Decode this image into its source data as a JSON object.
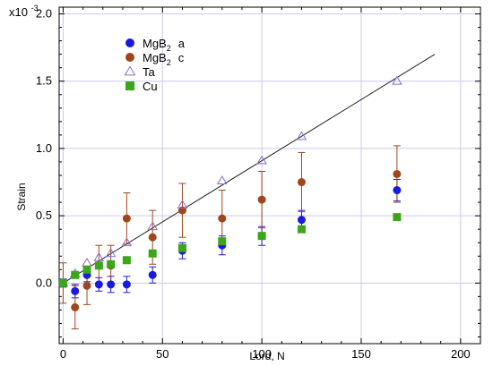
{
  "chart_data": {
    "type": "scatter",
    "ylabel": "Strain",
    "xlabel": "Lord, N",
    "y_exponent_label": "x10",
    "y_exponent_power": "-3",
    "xlim": [
      -2,
      210
    ],
    "ylim": [
      -0.00045,
      0.00205
    ],
    "x_ticks": [
      0,
      50,
      100,
      150,
      200
    ],
    "x_tick_labels": [
      "0",
      "50",
      "100",
      "150",
      "200"
    ],
    "y_ticks": [
      0,
      0.0005,
      0.001,
      0.0015,
      0.002
    ],
    "y_tick_labels": [
      "0.0",
      "0.5",
      "1.0",
      "1.5",
      "2.0"
    ],
    "grid": true,
    "legend_position": "top-left",
    "series": [
      {
        "name_main": "MgB",
        "name_sub": "2",
        "name_tail": "a",
        "marker": "circle",
        "color": "#1a1adf",
        "x": [
          0,
          6,
          12,
          18,
          24,
          32,
          45,
          60,
          80,
          100,
          120,
          168
        ],
        "y": [
          0,
          -6e-05,
          6e-05,
          -1e-05,
          -1e-05,
          -1e-05,
          6e-05,
          0.00024,
          0.00028,
          0.00035,
          0.00047,
          0.00069
        ],
        "err": [
          3e-05,
          5e-05,
          5e-05,
          5e-05,
          6e-05,
          6e-05,
          6e-05,
          6e-05,
          7e-05,
          7e-05,
          7e-05,
          8e-05
        ]
      },
      {
        "name_main": "MgB",
        "name_sub": "2",
        "name_tail": "c",
        "marker": "circle",
        "color": "#a0461a",
        "x": [
          0,
          6,
          12,
          18,
          24,
          32,
          45,
          60,
          80,
          100,
          120,
          168
        ],
        "y": [
          0,
          -0.00018,
          -2e-05,
          0.00013,
          0.00013,
          0.00048,
          0.00034,
          0.00054,
          0.00048,
          0.00062,
          0.00075,
          0.00081
        ],
        "err": [
          0.00015,
          0.00016,
          0.00014,
          0.00015,
          0.00015,
          0.00019,
          0.0002,
          0.0002,
          0.00021,
          0.00021,
          0.00022,
          0.00021
        ]
      },
      {
        "name_main": "Ta",
        "name_sub": "",
        "name_tail": "",
        "marker": "triangle",
        "color": "#8a6fcf",
        "x": [
          0,
          6,
          12,
          18,
          24,
          32,
          45,
          60,
          80,
          100,
          120,
          168
        ],
        "y": [
          0,
          7e-05,
          0.00015,
          0.00019,
          0.00022,
          0.0003,
          0.00042,
          0.00058,
          0.00076,
          0.00091,
          0.00109,
          0.0015
        ],
        "err": []
      },
      {
        "name_main": "Cu",
        "name_sub": "",
        "name_tail": "",
        "marker": "square",
        "color": "#3aa61a",
        "x": [
          0,
          6,
          12,
          18,
          24,
          32,
          45,
          60,
          80,
          100,
          120,
          168
        ],
        "y": [
          0,
          6e-05,
          0.0001,
          0.00013,
          0.00014,
          0.00017,
          0.00022,
          0.00026,
          0.00031,
          0.00035,
          0.0004,
          0.00049
        ],
        "err": []
      }
    ],
    "fit_line": {
      "x": [
        0,
        187
      ],
      "y": [
        0,
        0.0017
      ],
      "color": "#222222"
    }
  }
}
